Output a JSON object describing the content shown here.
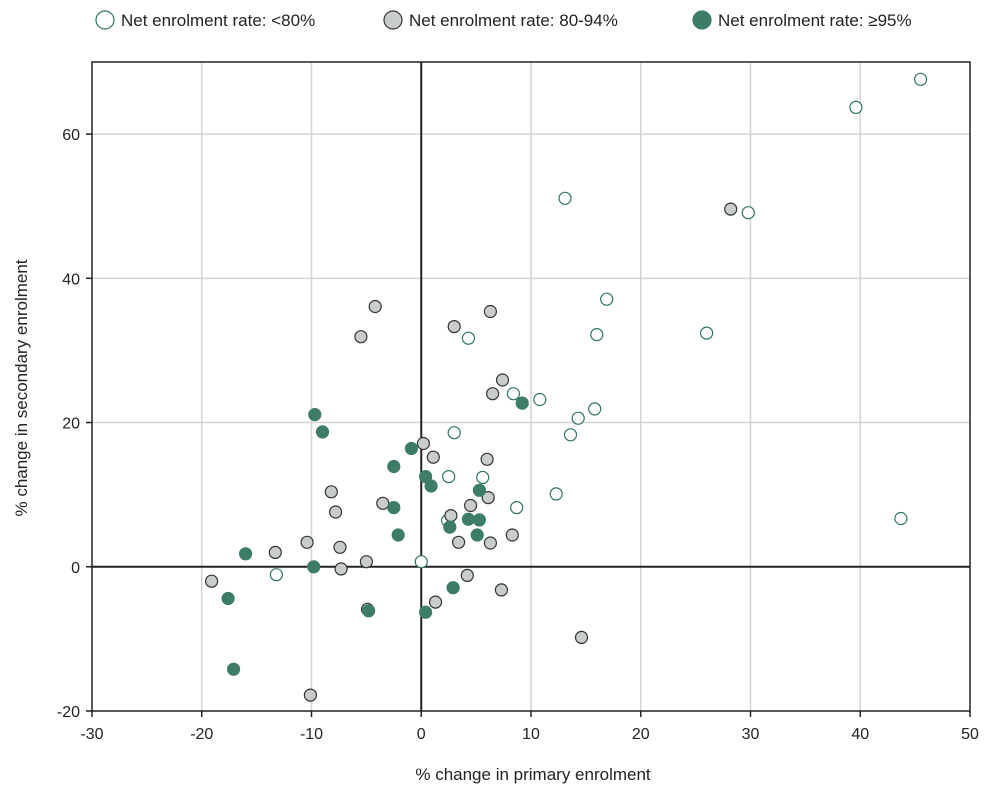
{
  "chart_data": {
    "type": "scatter",
    "title": "",
    "xlabel": "% change in primary enrolment",
    "ylabel": "% change in secondary enrolment",
    "xlim": [
      -30,
      50
    ],
    "ylim": [
      -20,
      70
    ],
    "x_ticks": [
      -30,
      -20,
      -10,
      0,
      10,
      20,
      30,
      40,
      50
    ],
    "x_tick_labels": [
      "-30",
      "-20",
      "-10",
      "0",
      "10",
      "20",
      "30",
      "40",
      "50"
    ],
    "y_ticks": [
      -20,
      0,
      20,
      40,
      60
    ],
    "y_tick_labels": [
      "-20",
      "0",
      "20",
      "40",
      "60"
    ],
    "grid": true,
    "legend_position": "top",
    "series": [
      {
        "name": "Net enrolment rate: <80%",
        "fill": "#ffffff",
        "stroke": "#2e7560",
        "points": [
          [
            45.5,
            67.6
          ],
          [
            39.6,
            63.7
          ],
          [
            29.8,
            49.1
          ],
          [
            13.1,
            51.1
          ],
          [
            16.9,
            37.1
          ],
          [
            16.0,
            32.2
          ],
          [
            26.0,
            32.4
          ],
          [
            4.3,
            31.7
          ],
          [
            8.4,
            24.0
          ],
          [
            10.8,
            23.2
          ],
          [
            14.3,
            20.6
          ],
          [
            15.8,
            21.9
          ],
          [
            13.6,
            18.3
          ],
          [
            3.0,
            18.6
          ],
          [
            2.5,
            12.5
          ],
          [
            5.6,
            12.4
          ],
          [
            12.3,
            10.1
          ],
          [
            8.7,
            8.2
          ],
          [
            2.4,
            6.4
          ],
          [
            -13.2,
            -1.1
          ],
          [
            0.0,
            0.7
          ],
          [
            43.7,
            6.7
          ]
        ]
      },
      {
        "name": "Net enrolment rate: 80-94%",
        "fill": "#c9cdc9",
        "stroke": "#333333",
        "points": [
          [
            28.2,
            49.6
          ],
          [
            -4.2,
            36.1
          ],
          [
            6.3,
            35.4
          ],
          [
            3.0,
            33.3
          ],
          [
            -5.5,
            31.9
          ],
          [
            7.4,
            25.9
          ],
          [
            6.5,
            24.0
          ],
          [
            0.2,
            17.1
          ],
          [
            6.0,
            14.9
          ],
          [
            1.1,
            15.2
          ],
          [
            -8.2,
            10.4
          ],
          [
            -7.8,
            7.6
          ],
          [
            -3.5,
            8.8
          ],
          [
            4.5,
            8.5
          ],
          [
            6.1,
            9.6
          ],
          [
            2.7,
            7.1
          ],
          [
            8.3,
            4.4
          ],
          [
            -10.4,
            3.4
          ],
          [
            -13.3,
            2.0
          ],
          [
            -7.4,
            2.7
          ],
          [
            3.4,
            3.4
          ],
          [
            6.3,
            3.3
          ],
          [
            -5.0,
            0.7
          ],
          [
            -7.3,
            -0.3
          ],
          [
            -19.1,
            -2.0
          ],
          [
            4.2,
            -1.2
          ],
          [
            7.3,
            -3.2
          ],
          [
            -4.9,
            -5.9
          ],
          [
            1.3,
            -4.9
          ],
          [
            14.6,
            -9.8
          ],
          [
            -10.1,
            -17.8
          ]
        ]
      },
      {
        "name": "Net enrolment rate: ≥95%",
        "fill": "#3d7d66",
        "stroke": "#3d7d66",
        "points": [
          [
            -9.7,
            21.1
          ],
          [
            -9.0,
            18.7
          ],
          [
            9.2,
            22.7
          ],
          [
            -0.9,
            16.4
          ],
          [
            -2.5,
            13.9
          ],
          [
            0.4,
            12.5
          ],
          [
            0.9,
            11.2
          ],
          [
            5.3,
            10.6
          ],
          [
            -2.5,
            8.2
          ],
          [
            4.3,
            6.6
          ],
          [
            5.3,
            6.5
          ],
          [
            2.6,
            5.5
          ],
          [
            5.1,
            4.4
          ],
          [
            -2.1,
            4.4
          ],
          [
            -16.0,
            1.8
          ],
          [
            -9.8,
            0.0
          ],
          [
            2.9,
            -2.9
          ],
          [
            0.4,
            -6.3
          ],
          [
            -4.8,
            -6.1
          ],
          [
            -17.6,
            -4.4
          ],
          [
            -17.1,
            -14.2
          ]
        ]
      }
    ]
  }
}
